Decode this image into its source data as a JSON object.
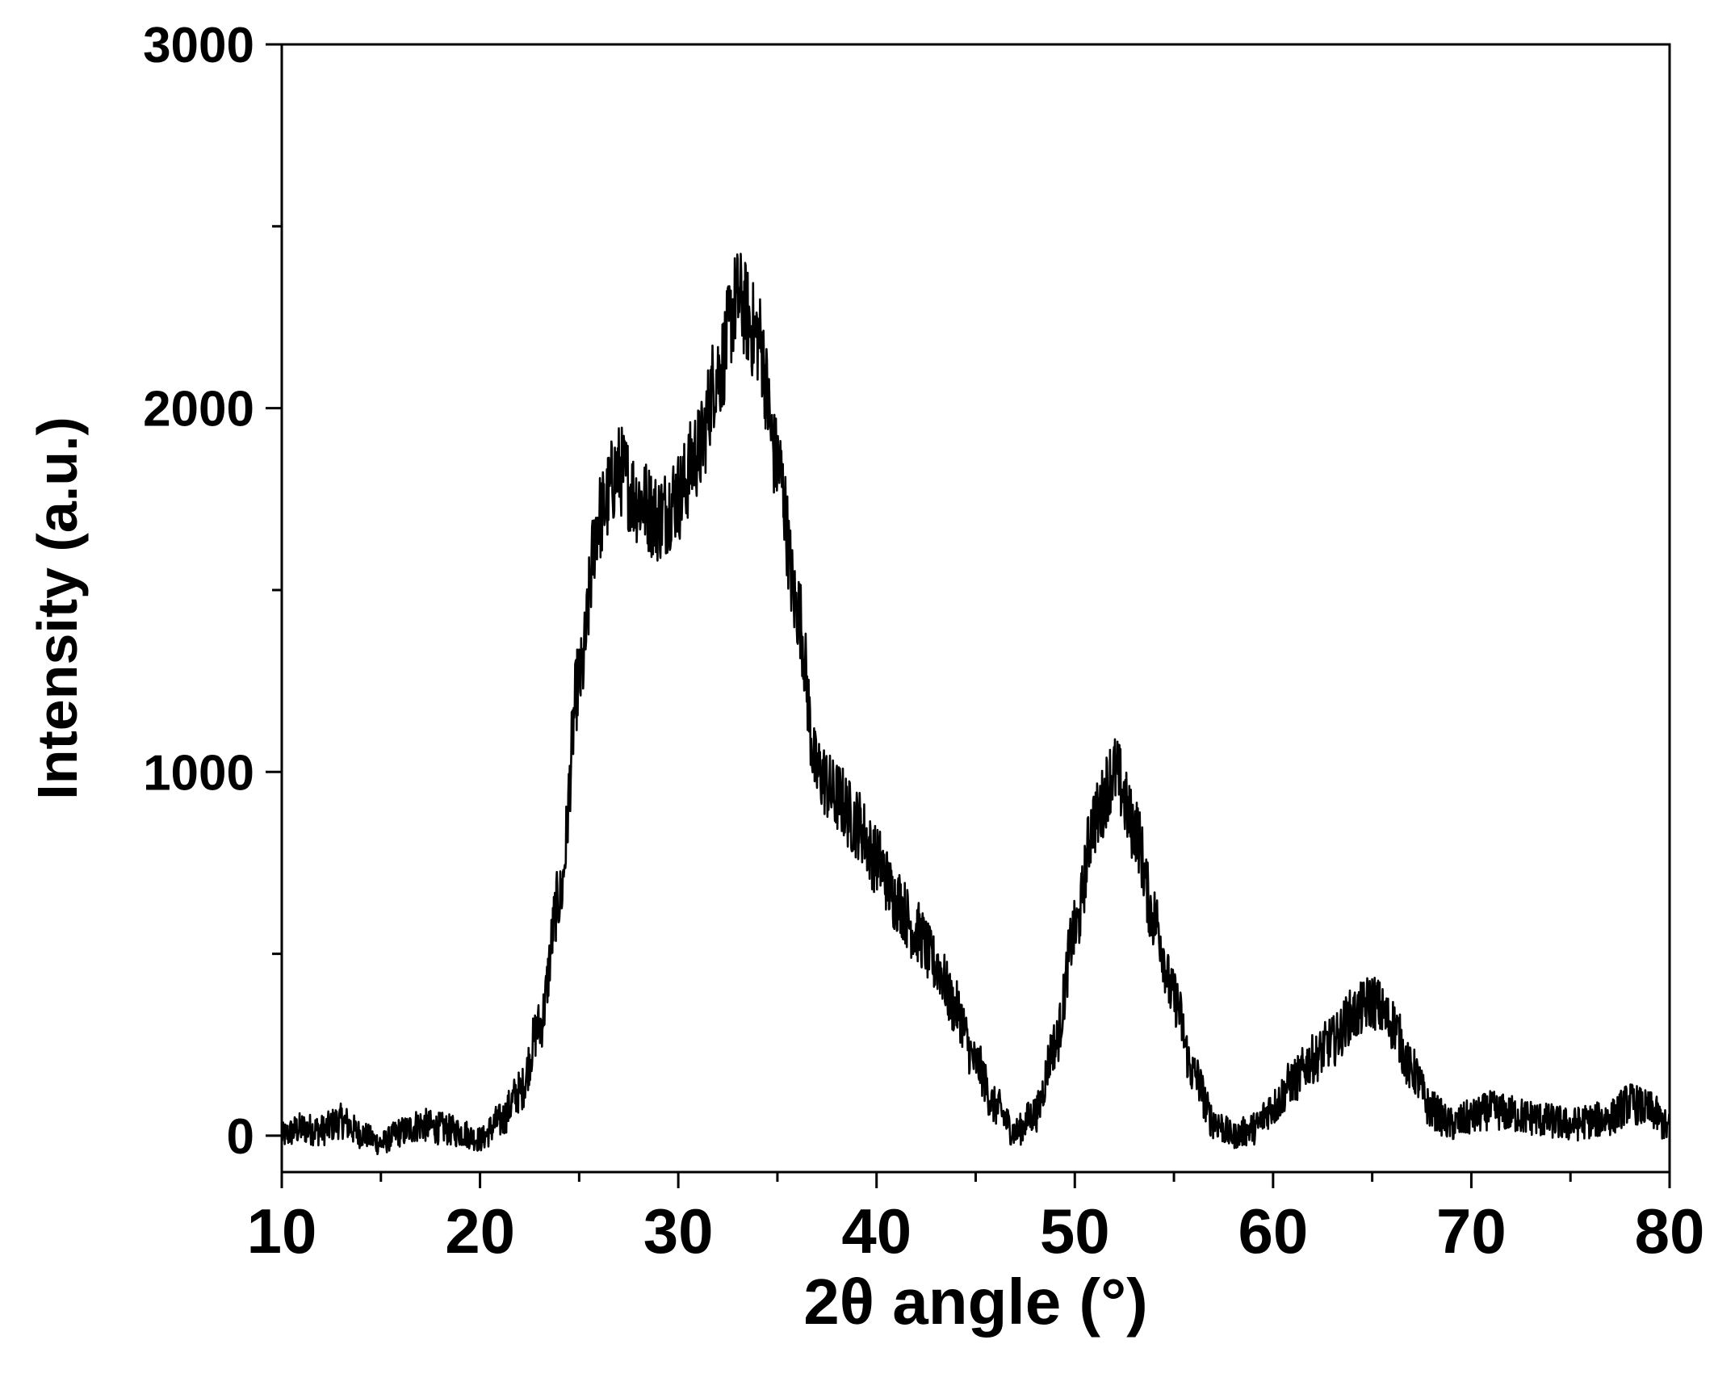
{
  "chart_data": {
    "type": "line",
    "title": "",
    "xlabel": "2θ angle (°)",
    "ylabel": "Intensity (a.u.)",
    "xlim": [
      10,
      80
    ],
    "ylim": [
      -100,
      3000
    ],
    "x_ticks": [
      10,
      20,
      30,
      40,
      50,
      60,
      70,
      80
    ],
    "x_tick_labels": [
      "10",
      "20",
      "30",
      "40",
      "50",
      "60",
      "70",
      "80"
    ],
    "y_ticks": [
      0,
      1000,
      2000,
      3000
    ],
    "y_tick_labels": [
      "0",
      "1000",
      "2000",
      "3000"
    ],
    "grid": false,
    "legend": "none",
    "line_color": "#000000",
    "series": [
      {
        "x": [
          10,
          11,
          12,
          13,
          14,
          15,
          16,
          17,
          18,
          19,
          20,
          21,
          22,
          23,
          24,
          25,
          26,
          27,
          28,
          29,
          30,
          31,
          32,
          33,
          34,
          35,
          36,
          37,
          38,
          39,
          40,
          41,
          42,
          43,
          44,
          45,
          46,
          47,
          48,
          49,
          50,
          51,
          52,
          53,
          54,
          55,
          56,
          57,
          58,
          59,
          60,
          61,
          62,
          63,
          64,
          65,
          66,
          67,
          68,
          69,
          70,
          71,
          72,
          73,
          74,
          75,
          76,
          77,
          78,
          79,
          80
        ],
        "y": [
          0,
          20,
          15,
          40,
          5,
          -20,
          10,
          30,
          20,
          10,
          -10,
          40,
          120,
          300,
          650,
          1250,
          1700,
          1830,
          1750,
          1700,
          1760,
          1880,
          2100,
          2300,
          2200,
          1850,
          1450,
          1000,
          930,
          860,
          760,
          650,
          560,
          470,
          350,
          200,
          80,
          10,
          60,
          250,
          560,
          870,
          1000,
          850,
          600,
          380,
          170,
          40,
          0,
          20,
          80,
          150,
          210,
          260,
          330,
          370,
          310,
          180,
          70,
          30,
          50,
          70,
          60,
          50,
          40,
          30,
          40,
          50,
          90,
          70,
          20
        ]
      }
    ]
  }
}
